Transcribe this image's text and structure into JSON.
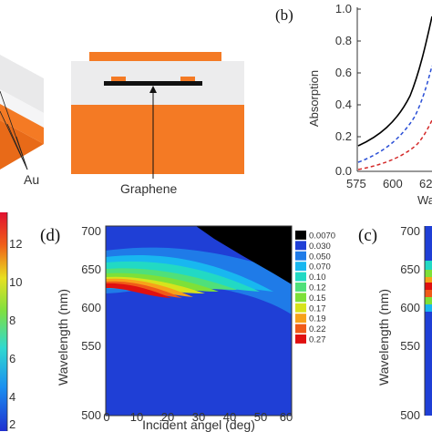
{
  "panel_a": {
    "label_au": "Au"
  },
  "panel_a2": {
    "label_graphene": "Graphene"
  },
  "panel_b": {
    "label": "(b)",
    "y_axis_title": "Absorption",
    "x_axis_title_partial": "Wa",
    "y_ticks": [
      "1.0",
      "0.8",
      "0.6",
      "0.4",
      "0.2",
      "0.0"
    ],
    "x_ticks": [
      "575",
      "600",
      "62"
    ],
    "colors": {
      "solid": "#000000",
      "blue": "#2a4fd6",
      "red": "#d42a2a"
    }
  },
  "panel_c_colorbar": {
    "ticks": [
      "12",
      "10",
      "8",
      "6",
      "4",
      "2"
    ]
  },
  "panel_d": {
    "label": "(d)",
    "y_axis_title": "Wavelength (nm)",
    "x_axis_title": "Incident angel (deg)",
    "y_ticks": [
      "700",
      "650",
      "600",
      "550",
      "500"
    ],
    "x_ticks": [
      "0",
      "10",
      "20",
      "30",
      "40",
      "50",
      "60"
    ],
    "legend": [
      {
        "label": "0.0070",
        "color": "#000000"
      },
      {
        "label": "0.030",
        "color": "#1f3fd6"
      },
      {
        "label": "0.050",
        "color": "#1f7be8"
      },
      {
        "label": "0.070",
        "color": "#18b7f0"
      },
      {
        "label": "0.10",
        "color": "#22d9c4"
      },
      {
        "label": "0.12",
        "color": "#4fe07a"
      },
      {
        "label": "0.15",
        "color": "#7ee038"
      },
      {
        "label": "0.17",
        "color": "#d7e31c"
      },
      {
        "label": "0.19",
        "color": "#f7a21a"
      },
      {
        "label": "0.22",
        "color": "#f05a18"
      },
      {
        "label": "0.27",
        "color": "#e01010"
      }
    ]
  },
  "panel_e": {
    "label": "(c)",
    "y_axis_title": "Wavelength (nm)",
    "y_ticks": [
      "700",
      "650",
      "600",
      "550",
      "500"
    ]
  }
}
